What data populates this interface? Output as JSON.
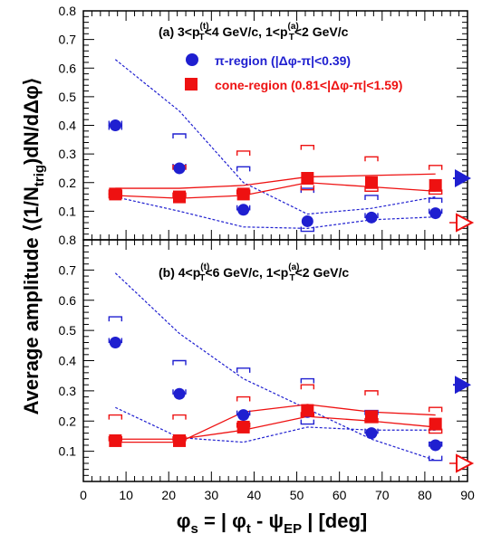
{
  "chart_data": {
    "type": "scatter",
    "ylabel": "Average amplitude ⟨(1/N_trig)dN/dΔφ⟩",
    "xlabel": "φ_s = | φ_t - ψ_EP |  [deg]",
    "xlim": [
      0,
      90
    ],
    "ylim": [
      0,
      0.8
    ],
    "x_ticks": [
      "0",
      "10",
      "20",
      "30",
      "40",
      "50",
      "60",
      "70",
      "80",
      "90"
    ],
    "y_ticks": [
      "0.1",
      "0.2",
      "0.3",
      "0.4",
      "0.5",
      "0.6",
      "0.7",
      "0.8"
    ],
    "legend": [
      {
        "name": "π-region (|Δφ-π|<0.39)",
        "color": "#1f1fd0",
        "marker": "circle"
      },
      {
        "name": "cone-region (0.81<|Δφ-π|<1.59)",
        "color": "#ee1111",
        "marker": "square"
      }
    ],
    "panels": [
      {
        "label": "(a) 3<p_T^(t)<4 GeV/c, 1<p_T^(a)<2 GeV/c",
        "x": [
          7.5,
          22.5,
          37.5,
          52.5,
          67.5,
          82.5
        ],
        "series": [
          {
            "name": "π-region",
            "color": "#1f1fd0",
            "values": [
              0.4,
              0.25,
              0.105,
              0.065,
              0.078,
              0.093
            ],
            "sys_upper": [
              0.4,
              0.37,
              0.255,
              0.18,
              0.155,
              0.145
            ],
            "sys_lower": [
              0.4,
              0.25,
              0.105,
              0.03,
              0.078,
              0.093
            ],
            "band_upper": [
              0.63,
              0.45,
              0.2,
              0.09,
              0.11,
              0.15
            ],
            "band_lower": [
              0.15,
              0.1,
              0.045,
              0.04,
              0.07,
              0.08
            ],
            "reference_value": 0.215
          },
          {
            "name": "cone-region",
            "color": "#ee1111",
            "values": [
              0.16,
              0.15,
              0.16,
              0.215,
              0.2,
              0.19
            ],
            "sys_upper": [
              0.16,
              0.26,
              0.31,
              0.33,
              0.29,
              0.26
            ],
            "sys_lower": [
              0.16,
              0.15,
              0.16,
              0.175,
              0.17,
              0.16
            ],
            "band_upper": [
              0.18,
              0.18,
              0.19,
              0.22,
              0.225,
              0.23
            ],
            "band_lower": [
              0.155,
              0.145,
              0.155,
              0.2,
              0.185,
              0.17
            ],
            "reference_value": 0.06
          }
        ]
      },
      {
        "label": "(b) 4<p_T^(t)<6 GeV/c, 1<p_T^(a)<2 GeV/c",
        "x": [
          7.5,
          22.5,
          37.5,
          52.5,
          67.5,
          82.5
        ],
        "series": [
          {
            "name": "π-region",
            "color": "#1f1fd0",
            "values": [
              0.46,
              0.29,
              0.22,
              0.23,
              0.16,
              0.12
            ],
            "sys_upper": [
              0.545,
              0.4,
              0.375,
              0.34,
              0.235,
              0.13
            ],
            "sys_lower": [
              0.46,
              0.29,
              0.22,
              0.19,
              0.16,
              0.07
            ],
            "band_upper": [
              0.69,
              0.49,
              0.34,
              0.24,
              0.14,
              0.07
            ],
            "band_lower": [
              0.245,
              0.145,
              0.13,
              0.18,
              0.17,
              0.17
            ],
            "reference_value": 0.32
          },
          {
            "name": "cone-region",
            "color": "#ee1111",
            "values": [
              0.135,
              0.135,
              0.18,
              0.235,
              0.215,
              0.19
            ],
            "sys_upper": [
              0.22,
              0.22,
              0.28,
              0.32,
              0.3,
              0.245
            ],
            "sys_lower": [
              0.135,
              0.135,
              0.18,
              0.215,
              0.195,
              0.16
            ],
            "band_upper": [
              0.13,
              0.13,
              0.23,
              0.255,
              0.23,
              0.22
            ],
            "band_lower": [
              0.14,
              0.14,
              0.17,
              0.215,
              0.2,
              0.18
            ],
            "reference_value": 0.06
          }
        ]
      }
    ]
  }
}
